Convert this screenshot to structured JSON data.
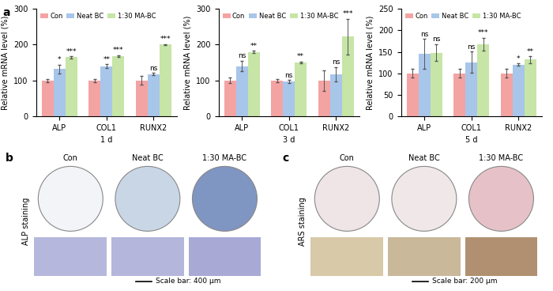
{
  "chart_data": [
    {
      "type": "bar",
      "xlabel": "1 d",
      "ylabel": "Relative mRNA level (%)",
      "categories": [
        "ALP",
        "COL1",
        "RUNX2"
      ],
      "series": [
        {
          "name": "Con",
          "color": "#f4a3a3",
          "values": [
            100,
            100,
            100
          ],
          "errors": [
            5,
            5,
            12
          ]
        },
        {
          "name": "Neat BC",
          "color": "#a8c6ea",
          "values": [
            132,
            140,
            118
          ],
          "errors": [
            12,
            5,
            3
          ],
          "significance": [
            "*",
            "**",
            "ns"
          ]
        },
        {
          "name": "1:30 MA-BC",
          "color": "#c6e5a6",
          "values": [
            165,
            168,
            200
          ],
          "errors": [
            3,
            3,
            2
          ],
          "significance": [
            "***",
            "***",
            "***"
          ]
        }
      ],
      "ylim": [
        0,
        300
      ],
      "yticks": [
        0,
        100,
        200,
        300
      ],
      "legend": "upper left"
    },
    {
      "type": "bar",
      "xlabel": "3 d",
      "ylabel": "Relative mRNA level (%)",
      "categories": [
        "ALP",
        "COL1",
        "RUNX2"
      ],
      "series": [
        {
          "name": "Con",
          "color": "#f4a3a3",
          "values": [
            100,
            100,
            100
          ],
          "errors": [
            8,
            5,
            28
          ]
        },
        {
          "name": "Neat BC",
          "color": "#a8c6ea",
          "values": [
            140,
            97,
            118
          ],
          "errors": [
            15,
            5,
            20
          ],
          "significance": [
            "ns",
            "ns",
            "ns"
          ]
        },
        {
          "name": "1:30 MA-BC",
          "color": "#c6e5a6",
          "values": [
            180,
            150,
            222
          ],
          "errors": [
            3,
            3,
            50
          ],
          "significance": [
            "**",
            "**",
            "***"
          ]
        }
      ],
      "ylim": [
        0,
        300
      ],
      "yticks": [
        0,
        100,
        200,
        300
      ],
      "legend": "upper left"
    },
    {
      "type": "bar",
      "xlabel": "5 d",
      "ylabel": "Relative mRNA level (%)",
      "categories": [
        "ALP",
        "COL1",
        "RUNX2"
      ],
      "series": [
        {
          "name": "Con",
          "color": "#f4a3a3",
          "values": [
            100,
            100,
            100
          ],
          "errors": [
            10,
            10,
            10
          ]
        },
        {
          "name": "Neat BC",
          "color": "#a8c6ea",
          "values": [
            145,
            126,
            120
          ],
          "errors": [
            35,
            25,
            3
          ],
          "significance": [
            "ns",
            "ns",
            "*"
          ]
        },
        {
          "name": "1:30 MA-BC",
          "color": "#c6e5a6",
          "values": [
            148,
            168,
            132
          ],
          "errors": [
            20,
            15,
            8
          ],
          "significance": [
            "ns",
            "***",
            "**"
          ]
        }
      ],
      "ylim": [
        0,
        250
      ],
      "yticks": [
        0,
        50,
        100,
        150,
        200,
        250
      ],
      "legend": "upper left"
    }
  ],
  "panel_labels": [
    "a",
    "b",
    "c"
  ],
  "staining_panels": [
    {
      "label": "ALP staining",
      "columns": [
        "Con",
        "Neat BC",
        "1:30 MA-BC"
      ],
      "scale_bar": "Scale bar: 400 μm"
    },
    {
      "label": "ARS staining",
      "columns": [
        "Con",
        "Neat BC",
        "1:30 MA-BC"
      ],
      "scale_bar": "Scale bar: 200 μm"
    }
  ]
}
